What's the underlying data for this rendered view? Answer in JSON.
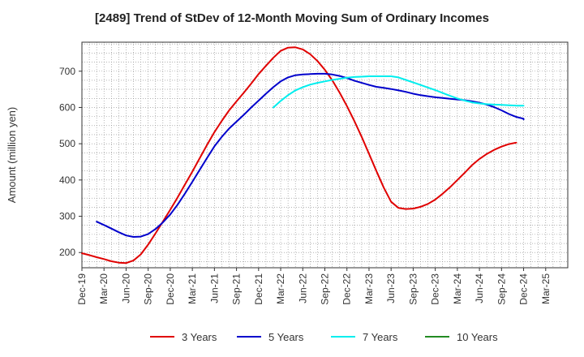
{
  "chart_data": {
    "type": "line",
    "title": "[2489]  Trend of StDev of 12-Month Moving Sum of Ordinary Incomes",
    "xlabel": "",
    "ylabel": "Amount (million yen)",
    "ylim": [
      158,
      780
    ],
    "yticks": [
      200,
      300,
      400,
      500,
      600,
      700
    ],
    "x_range": [
      0,
      66
    ],
    "x_ticks": [
      {
        "label": "Dec-19",
        "m": 0
      },
      {
        "label": "Mar-20",
        "m": 3
      },
      {
        "label": "Jun-20",
        "m": 6
      },
      {
        "label": "Sep-20",
        "m": 9
      },
      {
        "label": "Dec-20",
        "m": 12
      },
      {
        "label": "Mar-21",
        "m": 15
      },
      {
        "label": "Jun-21",
        "m": 18
      },
      {
        "label": "Sep-21",
        "m": 21
      },
      {
        "label": "Dec-21",
        "m": 24
      },
      {
        "label": "Mar-22",
        "m": 27
      },
      {
        "label": "Jun-22",
        "m": 30
      },
      {
        "label": "Sep-22",
        "m": 33
      },
      {
        "label": "Dec-22",
        "m": 36
      },
      {
        "label": "Mar-23",
        "m": 39
      },
      {
        "label": "Jun-23",
        "m": 42
      },
      {
        "label": "Sep-23",
        "m": 45
      },
      {
        "label": "Dec-23",
        "m": 48
      },
      {
        "label": "Mar-24",
        "m": 51
      },
      {
        "label": "Jun-24",
        "m": 54
      },
      {
        "label": "Sep-24",
        "m": 57
      },
      {
        "label": "Dec-24",
        "m": 60
      },
      {
        "label": "Mar-25",
        "m": 63
      }
    ],
    "grid": true,
    "legend_position": "bottom",
    "series": [
      {
        "name": "3 Years",
        "color": "#e00000",
        "points": [
          [
            0,
            198
          ],
          [
            1,
            193
          ],
          [
            2,
            187
          ],
          [
            3,
            182
          ],
          [
            4,
            176
          ],
          [
            5,
            172
          ],
          [
            6,
            171
          ],
          [
            7,
            178
          ],
          [
            8,
            195
          ],
          [
            9,
            222
          ],
          [
            10,
            253
          ],
          [
            11,
            285
          ],
          [
            12,
            318
          ],
          [
            13,
            352
          ],
          [
            14,
            388
          ],
          [
            15,
            423
          ],
          [
            16,
            460
          ],
          [
            17,
            497
          ],
          [
            18,
            532
          ],
          [
            19,
            563
          ],
          [
            20,
            592
          ],
          [
            21,
            617
          ],
          [
            22,
            641
          ],
          [
            23,
            666
          ],
          [
            24,
            692
          ],
          [
            25,
            715
          ],
          [
            26,
            737
          ],
          [
            27,
            756
          ],
          [
            28,
            765
          ],
          [
            29,
            766
          ],
          [
            30,
            760
          ],
          [
            31,
            747
          ],
          [
            32,
            728
          ],
          [
            33,
            704
          ],
          [
            34,
            675
          ],
          [
            35,
            641
          ],
          [
            36,
            604
          ],
          [
            37,
            563
          ],
          [
            38,
            519
          ],
          [
            39,
            472
          ],
          [
            40,
            425
          ],
          [
            41,
            379
          ],
          [
            42,
            340
          ],
          [
            43,
            323
          ],
          [
            44,
            320
          ],
          [
            45,
            321
          ],
          [
            46,
            326
          ],
          [
            47,
            334
          ],
          [
            48,
            346
          ],
          [
            49,
            362
          ],
          [
            50,
            380
          ],
          [
            51,
            400
          ],
          [
            52,
            420
          ],
          [
            53,
            441
          ],
          [
            54,
            458
          ],
          [
            55,
            472
          ],
          [
            56,
            483
          ],
          [
            57,
            492
          ],
          [
            58,
            499
          ],
          [
            59,
            503
          ]
        ]
      },
      {
        "name": "5 Years",
        "color": "#0000cc",
        "points": [
          [
            2,
            285
          ],
          [
            3,
            276
          ],
          [
            4,
            266
          ],
          [
            5,
            256
          ],
          [
            6,
            247
          ],
          [
            7,
            243
          ],
          [
            8,
            244
          ],
          [
            9,
            251
          ],
          [
            10,
            265
          ],
          [
            11,
            283
          ],
          [
            12,
            305
          ],
          [
            13,
            332
          ],
          [
            14,
            363
          ],
          [
            15,
            395
          ],
          [
            16,
            428
          ],
          [
            17,
            461
          ],
          [
            18,
            493
          ],
          [
            19,
            519
          ],
          [
            20,
            542
          ],
          [
            21,
            561
          ],
          [
            22,
            580
          ],
          [
            23,
            600
          ],
          [
            24,
            619
          ],
          [
            25,
            638
          ],
          [
            26,
            656
          ],
          [
            27,
            672
          ],
          [
            28,
            683
          ],
          [
            29,
            689
          ],
          [
            30,
            691
          ],
          [
            31,
            692
          ],
          [
            32,
            693
          ],
          [
            33,
            693
          ],
          [
            34,
            691
          ],
          [
            35,
            687
          ],
          [
            36,
            681
          ],
          [
            37,
            674
          ],
          [
            38,
            668
          ],
          [
            39,
            662
          ],
          [
            40,
            657
          ],
          [
            41,
            654
          ],
          [
            42,
            651
          ],
          [
            43,
            647
          ],
          [
            44,
            643
          ],
          [
            45,
            638
          ],
          [
            46,
            634
          ],
          [
            47,
            631
          ],
          [
            48,
            628
          ],
          [
            49,
            626
          ],
          [
            50,
            624
          ],
          [
            51,
            622
          ],
          [
            52,
            620
          ],
          [
            53,
            617
          ],
          [
            54,
            613
          ],
          [
            55,
            608
          ],
          [
            56,
            601
          ],
          [
            57,
            592
          ],
          [
            58,
            582
          ],
          [
            59,
            574
          ],
          [
            60,
            569
          ],
          [
            60,
            567
          ]
        ]
      },
      {
        "name": "7 Years",
        "color": "#00eeee",
        "points": [
          [
            26,
            600
          ],
          [
            27,
            618
          ],
          [
            28,
            634
          ],
          [
            29,
            647
          ],
          [
            30,
            656
          ],
          [
            31,
            663
          ],
          [
            32,
            668
          ],
          [
            33,
            672
          ],
          [
            34,
            676
          ],
          [
            35,
            679
          ],
          [
            36,
            682
          ],
          [
            37,
            684
          ],
          [
            38,
            685
          ],
          [
            39,
            686
          ],
          [
            40,
            686
          ],
          [
            41,
            686
          ],
          [
            42,
            686
          ],
          [
            43,
            683
          ],
          [
            44,
            676
          ],
          [
            45,
            669
          ],
          [
            46,
            662
          ],
          [
            47,
            655
          ],
          [
            48,
            648
          ],
          [
            49,
            640
          ],
          [
            50,
            632
          ],
          [
            51,
            625
          ],
          [
            52,
            619
          ],
          [
            53,
            614
          ],
          [
            54,
            611
          ],
          [
            55,
            609
          ],
          [
            56,
            608
          ],
          [
            57,
            607
          ],
          [
            58,
            606
          ],
          [
            59,
            605
          ],
          [
            60,
            605
          ]
        ]
      },
      {
        "name": "10 Years",
        "color": "#228b22",
        "points": []
      }
    ]
  }
}
